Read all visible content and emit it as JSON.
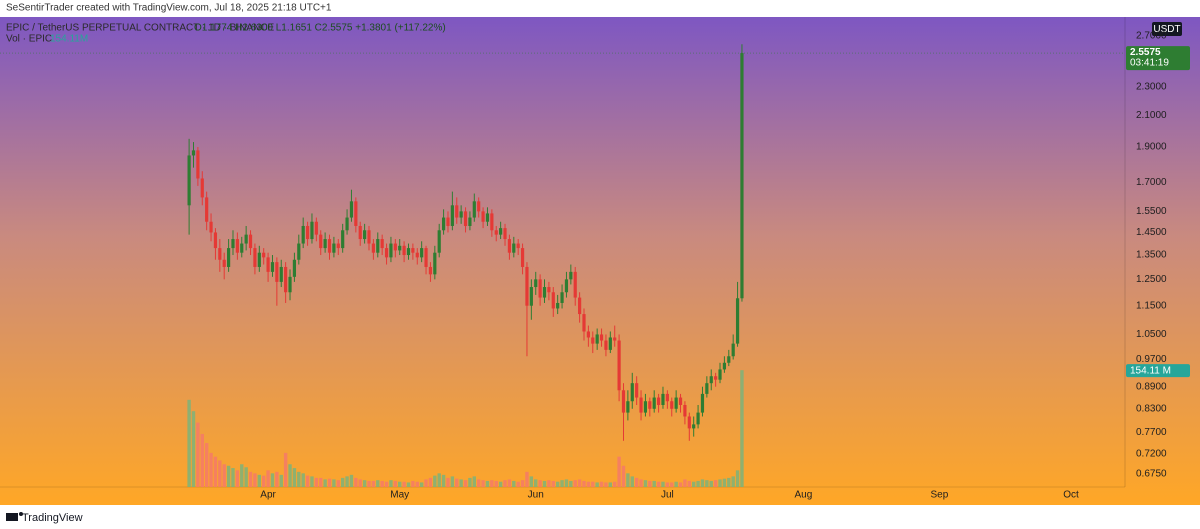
{
  "chart_data": {
    "type": "candlestick",
    "watermark": "SeSentirTrader created with TradingView.com, Jul 18, 2025 21:18 UTC+1",
    "symbol": "EPIC / TetherUS PERPETUAL CONTRACT · 1D · BINANCE",
    "ohlc_label": "O1.1774 H2.6300 L1.1651 C2.5575 +1.3801 (+117.22%)",
    "volume_title": "Vol · EPIC",
    "volume_value_label": "154.11M",
    "currency": "USDT",
    "last_price_label": "2.5575",
    "countdown": "03:41:19",
    "volume_axis_label": "154.11 M",
    "brand": "TradingView",
    "log_scale": true,
    "grid": false,
    "up_color": "#2e7d32",
    "down_color": "#e53935",
    "volume_up_color": "#7cb37a",
    "volume_down_color": "#f47a68",
    "xlim": [
      -43.1,
      213.3
    ],
    "xticks": [
      {
        "value": 18,
        "label": "Apr"
      },
      {
        "value": 48,
        "label": "May"
      },
      {
        "value": 79,
        "label": "Jun"
      },
      {
        "value": 109,
        "label": "Jul"
      },
      {
        "value": 140,
        "label": "Aug"
      },
      {
        "value": 171,
        "label": "Sep"
      },
      {
        "value": 201,
        "label": "Oct"
      }
    ],
    "ylim": [
      0.648,
      2.867
    ],
    "yticks": [
      {
        "value": 2.7,
        "label": "2.7000"
      },
      {
        "value": 2.3,
        "label": "2.3000"
      },
      {
        "value": 2.1,
        "label": "2.1000"
      },
      {
        "value": 1.9,
        "label": "1.9000"
      },
      {
        "value": 1.7,
        "label": "1.7000"
      },
      {
        "value": 1.55,
        "label": "1.5500"
      },
      {
        "value": 1.45,
        "label": "1.4500"
      },
      {
        "value": 1.35,
        "label": "1.3500"
      },
      {
        "value": 1.25,
        "label": "1.2500"
      },
      {
        "value": 1.15,
        "label": "1.1500"
      },
      {
        "value": 1.05,
        "label": "1.0500"
      },
      {
        "value": 0.97,
        "label": "0.9700"
      },
      {
        "value": 0.89,
        "label": "0.8900"
      },
      {
        "value": 0.83,
        "label": "0.8300"
      },
      {
        "value": 0.77,
        "label": "0.7700"
      },
      {
        "value": 0.72,
        "label": "0.7200"
      },
      {
        "value": 0.675,
        "label": "0.6750"
      }
    ],
    "y2lim": [
      0,
      620
    ],
    "candles": [
      [
        1.58,
        1.95,
        1.44,
        1.85
      ],
      [
        1.85,
        1.93,
        1.78,
        1.88
      ],
      [
        1.88,
        1.9,
        1.68,
        1.72
      ],
      [
        1.72,
        1.76,
        1.58,
        1.62
      ],
      [
        1.62,
        1.65,
        1.46,
        1.5
      ],
      [
        1.5,
        1.54,
        1.41,
        1.45
      ],
      [
        1.45,
        1.47,
        1.33,
        1.38
      ],
      [
        1.38,
        1.42,
        1.28,
        1.33
      ],
      [
        1.33,
        1.36,
        1.25,
        1.3
      ],
      [
        1.3,
        1.42,
        1.28,
        1.38
      ],
      [
        1.38,
        1.46,
        1.35,
        1.42
      ],
      [
        1.42,
        1.45,
        1.33,
        1.36
      ],
      [
        1.36,
        1.43,
        1.34,
        1.4
      ],
      [
        1.4,
        1.48,
        1.37,
        1.44
      ],
      [
        1.44,
        1.46,
        1.35,
        1.38
      ],
      [
        1.38,
        1.4,
        1.27,
        1.3
      ],
      [
        1.3,
        1.39,
        1.28,
        1.36
      ],
      [
        1.36,
        1.38,
        1.31,
        1.34
      ],
      [
        1.34,
        1.36,
        1.24,
        1.28
      ],
      [
        1.28,
        1.35,
        1.26,
        1.32
      ],
      [
        1.32,
        1.34,
        1.15,
        1.24
      ],
      [
        1.24,
        1.33,
        1.22,
        1.3
      ],
      [
        1.3,
        1.32,
        1.16,
        1.2
      ],
      [
        1.2,
        1.29,
        1.17,
        1.26
      ],
      [
        1.26,
        1.36,
        1.24,
        1.33
      ],
      [
        1.33,
        1.44,
        1.31,
        1.4
      ],
      [
        1.4,
        1.52,
        1.38,
        1.48
      ],
      [
        1.48,
        1.5,
        1.39,
        1.42
      ],
      [
        1.42,
        1.54,
        1.4,
        1.5
      ],
      [
        1.5,
        1.52,
        1.41,
        1.44
      ],
      [
        1.44,
        1.46,
        1.35,
        1.38
      ],
      [
        1.38,
        1.45,
        1.36,
        1.42
      ],
      [
        1.42,
        1.44,
        1.33,
        1.36
      ],
      [
        1.36,
        1.43,
        1.34,
        1.4
      ],
      [
        1.4,
        1.42,
        1.35,
        1.38
      ],
      [
        1.38,
        1.49,
        1.36,
        1.46
      ],
      [
        1.46,
        1.56,
        1.44,
        1.52
      ],
      [
        1.52,
        1.66,
        1.5,
        1.6
      ],
      [
        1.6,
        1.62,
        1.45,
        1.48
      ],
      [
        1.48,
        1.5,
        1.39,
        1.42
      ],
      [
        1.42,
        1.49,
        1.4,
        1.46
      ],
      [
        1.46,
        1.48,
        1.37,
        1.4
      ],
      [
        1.4,
        1.42,
        1.33,
        1.36
      ],
      [
        1.36,
        1.45,
        1.34,
        1.42
      ],
      [
        1.42,
        1.44,
        1.35,
        1.38
      ],
      [
        1.38,
        1.4,
        1.31,
        1.34
      ],
      [
        1.34,
        1.43,
        1.32,
        1.4
      ],
      [
        1.4,
        1.42,
        1.34,
        1.37
      ],
      [
        1.37,
        1.42,
        1.35,
        1.39
      ],
      [
        1.39,
        1.41,
        1.32,
        1.35
      ],
      [
        1.35,
        1.4,
        1.33,
        1.38
      ],
      [
        1.38,
        1.4,
        1.33,
        1.36
      ],
      [
        1.36,
        1.38,
        1.31,
        1.34
      ],
      [
        1.34,
        1.41,
        1.32,
        1.38
      ],
      [
        1.38,
        1.39,
        1.27,
        1.3
      ],
      [
        1.3,
        1.32,
        1.24,
        1.27
      ],
      [
        1.27,
        1.39,
        1.25,
        1.36
      ],
      [
        1.36,
        1.49,
        1.34,
        1.46
      ],
      [
        1.46,
        1.56,
        1.44,
        1.52
      ],
      [
        1.52,
        1.55,
        1.45,
        1.48
      ],
      [
        1.48,
        1.65,
        1.46,
        1.58
      ],
      [
        1.58,
        1.62,
        1.49,
        1.52
      ],
      [
        1.52,
        1.58,
        1.49,
        1.55
      ],
      [
        1.55,
        1.57,
        1.45,
        1.48
      ],
      [
        1.48,
        1.55,
        1.46,
        1.52
      ],
      [
        1.52,
        1.64,
        1.5,
        1.6
      ],
      [
        1.6,
        1.62,
        1.52,
        1.55
      ],
      [
        1.55,
        1.57,
        1.47,
        1.5
      ],
      [
        1.5,
        1.57,
        1.48,
        1.54
      ],
      [
        1.54,
        1.56,
        1.43,
        1.46
      ],
      [
        1.46,
        1.48,
        1.41,
        1.44
      ],
      [
        1.44,
        1.5,
        1.42,
        1.47
      ],
      [
        1.47,
        1.49,
        1.39,
        1.42
      ],
      [
        1.42,
        1.44,
        1.33,
        1.36
      ],
      [
        1.36,
        1.43,
        1.34,
        1.4
      ],
      [
        1.4,
        1.42,
        1.35,
        1.38
      ],
      [
        1.38,
        1.4,
        1.27,
        1.3
      ],
      [
        1.3,
        1.32,
        0.98,
        1.15
      ],
      [
        1.15,
        1.25,
        1.1,
        1.22
      ],
      [
        1.22,
        1.28,
        1.19,
        1.25
      ],
      [
        1.25,
        1.27,
        1.15,
        1.18
      ],
      [
        1.18,
        1.25,
        1.16,
        1.22
      ],
      [
        1.22,
        1.24,
        1.17,
        1.2
      ],
      [
        1.2,
        1.22,
        1.11,
        1.14
      ],
      [
        1.14,
        1.19,
        1.12,
        1.16
      ],
      [
        1.16,
        1.23,
        1.14,
        1.2
      ],
      [
        1.2,
        1.28,
        1.18,
        1.25
      ],
      [
        1.25,
        1.31,
        1.23,
        1.28
      ],
      [
        1.28,
        1.3,
        1.15,
        1.18
      ],
      [
        1.18,
        1.2,
        1.09,
        1.12
      ],
      [
        1.12,
        1.14,
        1.03,
        1.06
      ],
      [
        1.06,
        1.08,
        1.01,
        1.04
      ],
      [
        1.04,
        1.06,
        0.99,
        1.02
      ],
      [
        1.02,
        1.07,
        1.0,
        1.05
      ],
      [
        1.05,
        1.07,
        1.01,
        1.03
      ],
      [
        1.03,
        1.05,
        0.98,
        1.0
      ],
      [
        1.0,
        1.06,
        0.99,
        1.04
      ],
      [
        1.04,
        1.08,
        1.01,
        1.03
      ],
      [
        1.03,
        1.05,
        0.85,
        0.88
      ],
      [
        0.88,
        0.9,
        0.75,
        0.82
      ],
      [
        0.82,
        0.88,
        0.8,
        0.85
      ],
      [
        0.85,
        0.93,
        0.83,
        0.9
      ],
      [
        0.9,
        0.92,
        0.84,
        0.86
      ],
      [
        0.86,
        0.88,
        0.8,
        0.82
      ],
      [
        0.82,
        0.87,
        0.81,
        0.85
      ],
      [
        0.85,
        0.86,
        0.81,
        0.83
      ],
      [
        0.83,
        0.88,
        0.82,
        0.86
      ],
      [
        0.86,
        0.87,
        0.82,
        0.84
      ],
      [
        0.84,
        0.89,
        0.83,
        0.87
      ],
      [
        0.87,
        0.88,
        0.83,
        0.85
      ],
      [
        0.85,
        0.86,
        0.81,
        0.83
      ],
      [
        0.83,
        0.88,
        0.82,
        0.86
      ],
      [
        0.86,
        0.87,
        0.82,
        0.84
      ],
      [
        0.84,
        0.85,
        0.79,
        0.81
      ],
      [
        0.81,
        0.82,
        0.75,
        0.78
      ],
      [
        0.78,
        0.81,
        0.76,
        0.79
      ],
      [
        0.79,
        0.84,
        0.78,
        0.82
      ],
      [
        0.82,
        0.89,
        0.81,
        0.87
      ],
      [
        0.87,
        0.92,
        0.86,
        0.9
      ],
      [
        0.9,
        0.94,
        0.88,
        0.92
      ],
      [
        0.92,
        0.93,
        0.89,
        0.91
      ],
      [
        0.91,
        0.96,
        0.9,
        0.94
      ],
      [
        0.94,
        0.98,
        0.93,
        0.96
      ],
      [
        0.96,
        1.0,
        0.95,
        0.98
      ],
      [
        0.98,
        1.05,
        0.97,
        1.02
      ],
      [
        1.02,
        1.24,
        1.01,
        1.1774
      ],
      [
        1.1774,
        2.63,
        1.1651,
        2.5575
      ]
    ],
    "volume": [
      115,
      100,
      85,
      70,
      58,
      45,
      40,
      35,
      30,
      28,
      25,
      22,
      30,
      26,
      20,
      18,
      16,
      15,
      22,
      18,
      20,
      16,
      45,
      30,
      25,
      20,
      18,
      15,
      14,
      12,
      12,
      10,
      11,
      10,
      9,
      12,
      14,
      16,
      12,
      10,
      9,
      8,
      8,
      9,
      8,
      7,
      9,
      8,
      7,
      7,
      6,
      8,
      7,
      6,
      10,
      12,
      15,
      18,
      16,
      12,
      14,
      11,
      10,
      9,
      12,
      14,
      10,
      9,
      8,
      9,
      8,
      7,
      9,
      10,
      8,
      7,
      9,
      20,
      14,
      10,
      9,
      8,
      9,
      8,
      7,
      9,
      10,
      8,
      9,
      10,
      8,
      7,
      7,
      6,
      7,
      6,
      6,
      7,
      40,
      28,
      18,
      14,
      12,
      10,
      9,
      8,
      8,
      7,
      7,
      6,
      6,
      7,
      6,
      10,
      8,
      7,
      8,
      10,
      9,
      8,
      9,
      10,
      11,
      12,
      14,
      22,
      154.11
    ]
  }
}
